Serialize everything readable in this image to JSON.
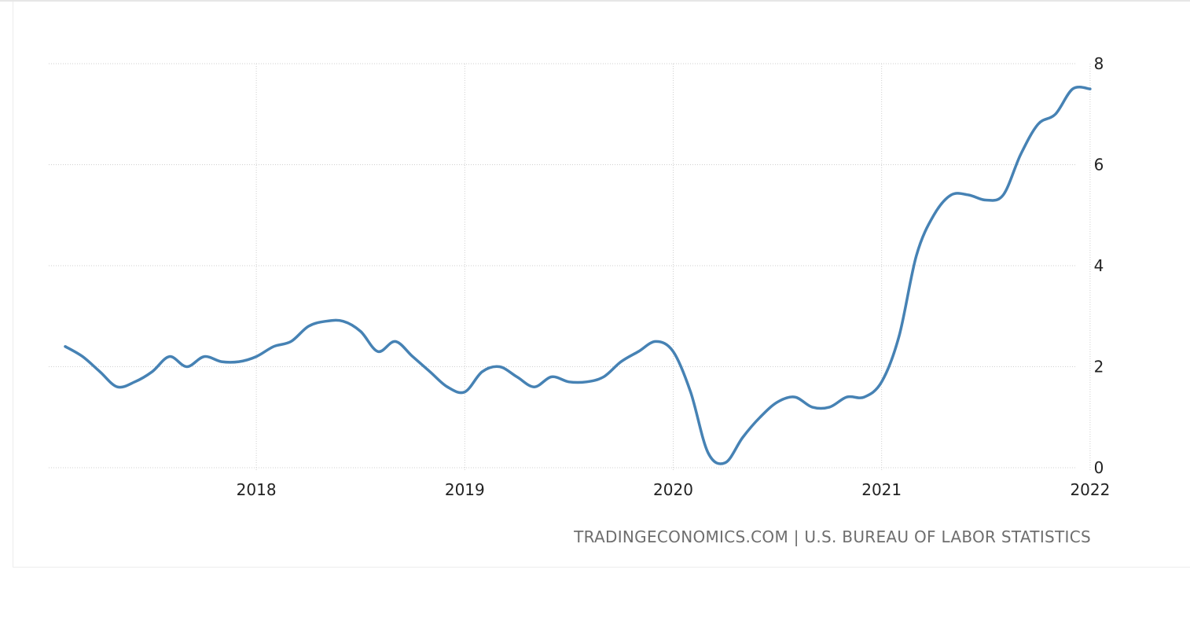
{
  "source_text": "TRADINGECONOMICS.COM | U.S. BUREAU OF LABOR STATISTICS",
  "colors": {
    "line": "#4682b4",
    "grid": "#cfcfcf",
    "tick_text": "#222222",
    "source_text": "#6e6e6e"
  },
  "chart_data": {
    "type": "line",
    "title": "",
    "xlabel": "",
    "ylabel": "",
    "x_tick_labels": [
      "2018",
      "2019",
      "2020",
      "2021",
      "2022"
    ],
    "y_tick_labels": [
      "0",
      "2",
      "4",
      "6",
      "8"
    ],
    "ylim": [
      0,
      8
    ],
    "xlim": [
      "2017-02",
      "2022-01"
    ],
    "y_axis_position": "right",
    "grid": true,
    "series": [
      {
        "x": [
          "2017-02",
          "2017-03",
          "2017-04",
          "2017-05",
          "2017-06",
          "2017-07",
          "2017-08",
          "2017-09",
          "2017-10",
          "2017-11",
          "2017-12",
          "2018-01",
          "2018-02",
          "2018-03",
          "2018-04",
          "2018-05",
          "2018-06",
          "2018-07",
          "2018-08",
          "2018-09",
          "2018-10",
          "2018-11",
          "2018-12",
          "2019-01",
          "2019-02",
          "2019-03",
          "2019-04",
          "2019-05",
          "2019-06",
          "2019-07",
          "2019-08",
          "2019-09",
          "2019-10",
          "2019-11",
          "2019-12",
          "2020-01",
          "2020-02",
          "2020-03",
          "2020-04",
          "2020-05",
          "2020-06",
          "2020-07",
          "2020-08",
          "2020-09",
          "2020-10",
          "2020-11",
          "2020-12",
          "2021-01",
          "2021-02",
          "2021-03",
          "2021-04",
          "2021-05",
          "2021-06",
          "2021-07",
          "2021-08",
          "2021-09",
          "2021-10",
          "2021-11",
          "2021-12",
          "2022-01"
        ],
        "values": [
          2.4,
          2.2,
          1.9,
          1.6,
          1.7,
          1.9,
          2.2,
          2.0,
          2.2,
          2.1,
          2.1,
          2.2,
          2.4,
          2.5,
          2.8,
          2.9,
          2.9,
          2.7,
          2.3,
          2.5,
          2.2,
          1.9,
          1.6,
          1.5,
          1.9,
          2.0,
          1.8,
          1.6,
          1.8,
          1.7,
          1.7,
          1.8,
          2.1,
          2.3,
          2.5,
          2.3,
          1.5,
          0.3,
          0.1,
          0.6,
          1.0,
          1.3,
          1.4,
          1.2,
          1.2,
          1.4,
          1.4,
          1.7,
          2.6,
          4.2,
          5.0,
          5.4,
          5.4,
          5.3,
          5.4,
          6.2,
          6.8,
          7.0,
          7.5,
          7.5
        ]
      }
    ]
  }
}
